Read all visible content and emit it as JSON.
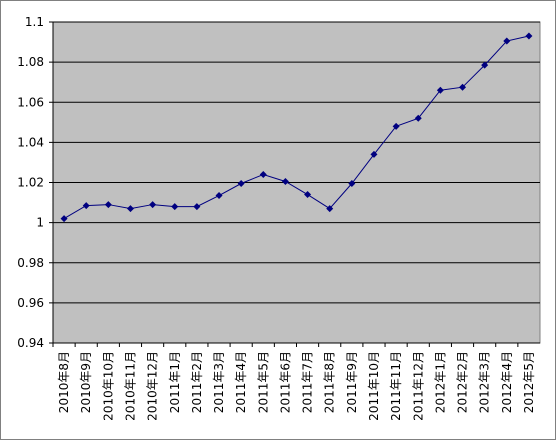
{
  "chart_data": {
    "type": "line",
    "categories": [
      "2010年8月",
      "2010年9月",
      "2010年10月",
      "2010年11月",
      "2010年12月",
      "2011年1月",
      "2011年2月",
      "2011年3月",
      "2011年4月",
      "2011年5月",
      "2011年6月",
      "2011年7月",
      "2011年8月",
      "2011年9月",
      "2011年10月",
      "2011年11月",
      "2011年12月",
      "2012年1月",
      "2012年2月",
      "2012年3月",
      "2012年4月",
      "2012年5月"
    ],
    "values": [
      1.002,
      1.0085,
      1.009,
      1.007,
      1.009,
      1.008,
      1.008,
      1.0135,
      1.0195,
      1.024,
      1.0205,
      1.014,
      1.007,
      1.0195,
      1.034,
      1.048,
      1.052,
      1.066,
      1.0675,
      1.0785,
      1.0905,
      1.093
    ],
    "color": "#000080",
    "ylim": [
      0.94,
      1.1
    ],
    "yticks": [
      0.94,
      0.96,
      0.98,
      1,
      1.02,
      1.04,
      1.06,
      1.08,
      1.1
    ],
    "grid": true
  }
}
